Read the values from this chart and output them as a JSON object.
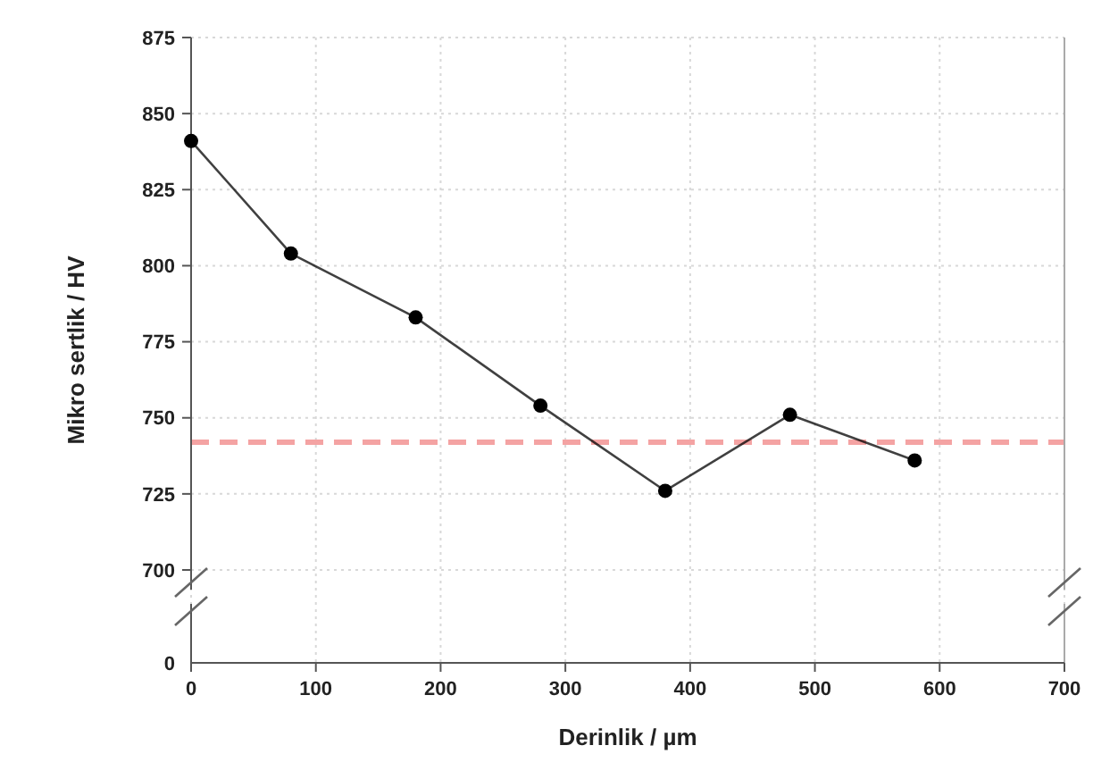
{
  "chart_data": {
    "type": "line",
    "ylabel": "Mikro sertlik / HV",
    "xlabel": "Derinlik / µm",
    "x": [
      0,
      80,
      180,
      280,
      380,
      480,
      580
    ],
    "series": [
      {
        "color": "#000000",
        "values": [
          841,
          804,
          783,
          754,
          726,
          751,
          736
        ]
      }
    ],
    "xlim": [
      0,
      700
    ],
    "xticks": [
      0,
      100,
      200,
      300,
      400,
      500,
      600,
      700
    ],
    "ylim": [
      700,
      875
    ],
    "yticks": [
      700,
      725,
      750,
      775,
      800,
      825,
      850,
      875
    ],
    "ref_lines": [
      {
        "axis": "y",
        "value": 742,
        "color": "#f4a3a3",
        "line_style": "dashed"
      }
    ],
    "annotations": [
      "0"
    ],
    "grid": true,
    "marker": "circle",
    "line_style": "solid"
  }
}
